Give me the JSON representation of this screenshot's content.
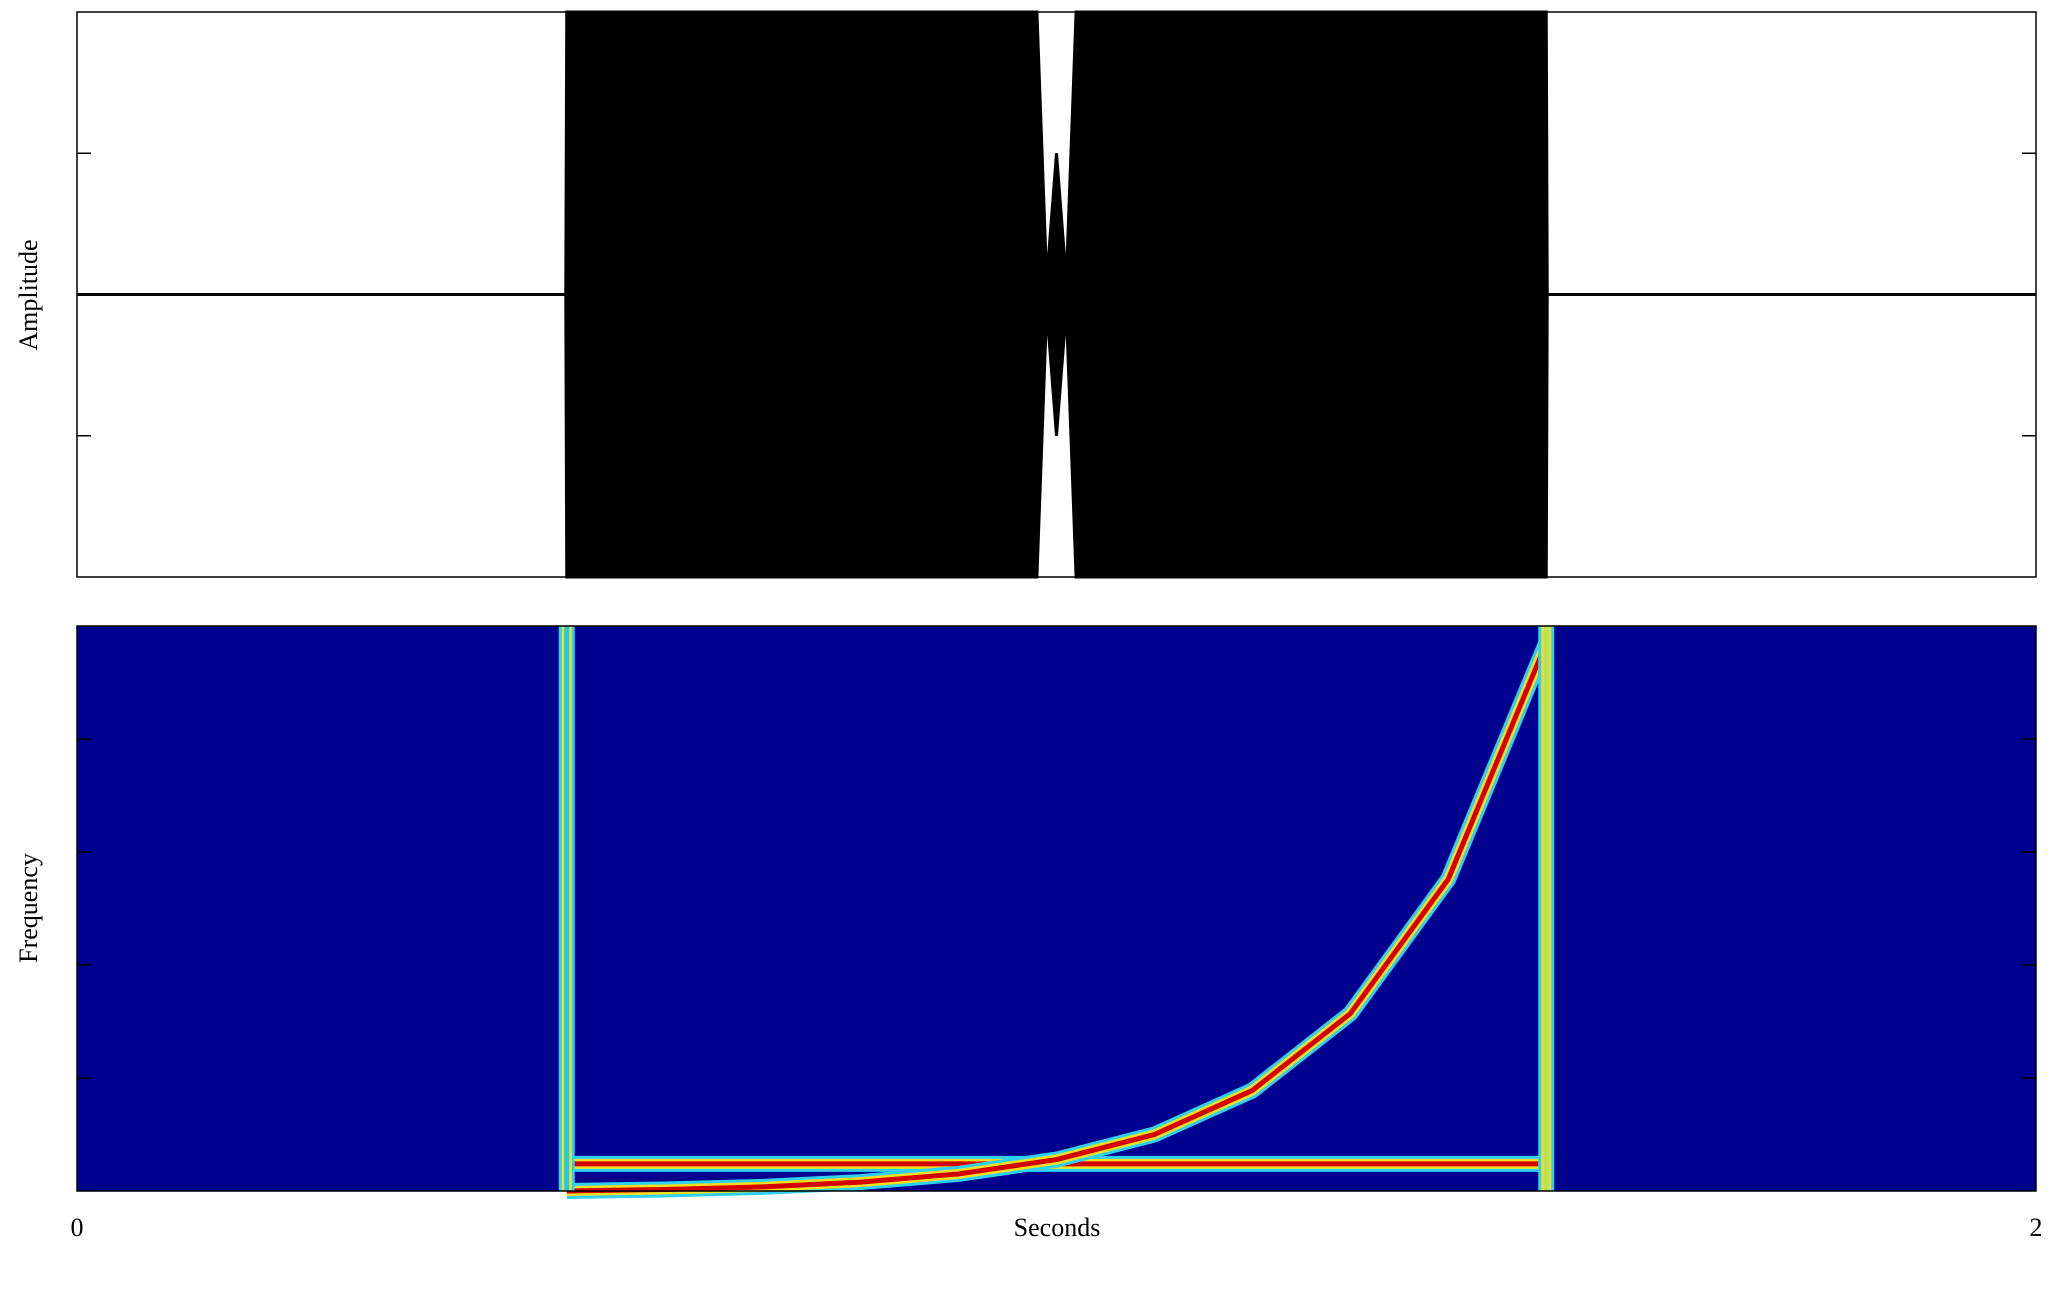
{
  "chart_data": [
    {
      "type": "area",
      "ylabel": "Amplitude",
      "color": "#000000",
      "xlim": [
        0,
        2
      ],
      "ylim": [
        -1,
        1
      ],
      "yticks": [
        -0.5,
        0.5
      ],
      "series": [
        {
          "color": "#000000",
          "x": [
            0,
            0.499,
            0.5,
            0.98,
            0.99,
            1.0,
            1.01,
            1.02,
            1.5,
            1.501,
            2
          ],
          "upper": [
            0,
            0,
            1,
            1,
            0.05,
            0.5,
            0.05,
            1,
            1,
            0,
            0
          ],
          "lower": [
            0,
            0,
            -1,
            -1,
            -0.05,
            -0.5,
            -0.05,
            -1,
            -1,
            0,
            0
          ]
        }
      ]
    },
    {
      "type": "line",
      "ylabel": "Frequency",
      "xlabel": "Seconds",
      "background": "#00008f",
      "xlim": [
        0,
        2
      ],
      "ylim": [
        0,
        1
      ],
      "xticks": [
        0,
        2
      ],
      "yticks": [
        0.2,
        0.4,
        0.6,
        0.8
      ],
      "series": [
        {
          "color": "#d40000",
          "x": [
            0.5,
            1.5
          ],
          "values": [
            0.048,
            0.048
          ]
        },
        {
          "color": "#d40000",
          "x": [
            0.5,
            0.6,
            0.7,
            0.8,
            0.9,
            1.0,
            1.1,
            1.2,
            1.3,
            1.4,
            1.5
          ],
          "values": [
            0,
            0.0027,
            0.0074,
            0.0158,
            0.0302,
            0.0556,
            0.1,
            0.178,
            0.314,
            0.552,
            0.97
          ]
        },
        {
          "color": "#20c8e8",
          "x": [
            0.5,
            0.5
          ],
          "values": [
            0,
            1
          ]
        },
        {
          "color": "#b8e060",
          "x": [
            1.5,
            1.5
          ],
          "values": [
            0,
            1
          ]
        }
      ]
    }
  ]
}
